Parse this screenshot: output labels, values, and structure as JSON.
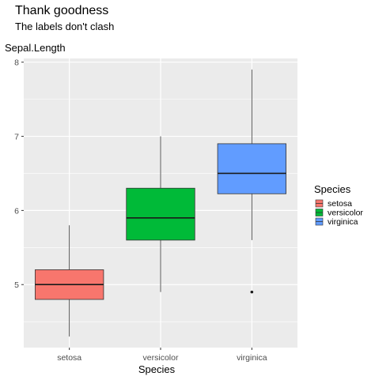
{
  "chart_data": {
    "type": "boxplot",
    "title": "Thank goodness",
    "subtitle": "The labels don't clash",
    "ylabel": "Sepal.Length",
    "xlabel": "Species",
    "categories": [
      "setosa",
      "versicolor",
      "virginica"
    ],
    "ylim": [
      4.15,
      8.05
    ],
    "yticks": [
      "5",
      "6",
      "7",
      "8"
    ],
    "grid": true,
    "legend": {
      "title": "Species",
      "position": "right",
      "entries": [
        "setosa",
        "versicolor",
        "virginica"
      ]
    },
    "colors": [
      "#F8766D",
      "#00BA38",
      "#619CFF"
    ],
    "boxes": [
      {
        "category": "setosa",
        "min": 4.3,
        "q1": 4.8,
        "median": 5.0,
        "q3": 5.2,
        "max": 5.8,
        "outliers": []
      },
      {
        "category": "versicolor",
        "min": 4.9,
        "q1": 5.6,
        "median": 5.9,
        "q3": 6.3,
        "max": 7.0,
        "outliers": []
      },
      {
        "category": "virginica",
        "min": 5.6,
        "q1": 6.225,
        "median": 6.5,
        "q3": 6.9,
        "max": 7.9,
        "outliers": [
          4.9
        ]
      }
    ]
  }
}
